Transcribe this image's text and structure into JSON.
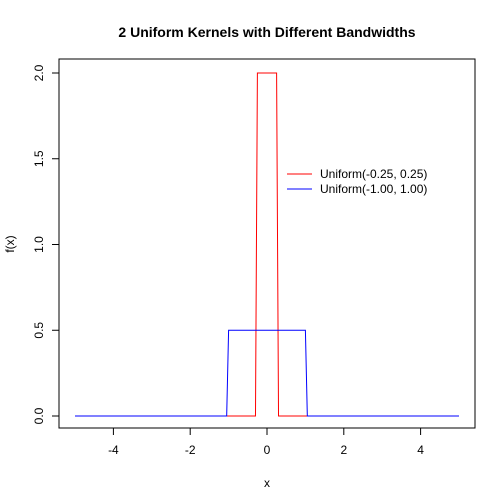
{
  "chart_data": {
    "type": "line",
    "title": "2 Uniform Kernels with Different Bandwidths",
    "xlabel": "x",
    "ylabel": "f(x)",
    "xlim": [
      -5,
      5
    ],
    "ylim": [
      0,
      2
    ],
    "xticks": [
      -4,
      -2,
      0,
      2,
      4
    ],
    "yticks": [
      0.0,
      0.5,
      1.0,
      1.5,
      2.0
    ],
    "xtick_labels": [
      "-4",
      "-2",
      "0",
      "2",
      "4"
    ],
    "ytick_labels": [
      "0.0",
      "0.5",
      "1.0",
      "1.5",
      "2.0"
    ],
    "grid": false,
    "legend_position": "right",
    "series": [
      {
        "name": "Uniform(-0.25, 0.25)",
        "color": "#ff0000",
        "x": [
          -5,
          -0.3,
          -0.25,
          0.25,
          0.3,
          5
        ],
        "y": [
          0,
          0,
          2,
          2,
          0,
          0
        ]
      },
      {
        "name": "Uniform(-1.00, 1.00)",
        "color": "#0000ff",
        "x": [
          -5,
          -1.05,
          -1.0,
          1.0,
          1.05,
          5
        ],
        "y": [
          0,
          0,
          0.5,
          0.5,
          0,
          0
        ]
      }
    ]
  }
}
